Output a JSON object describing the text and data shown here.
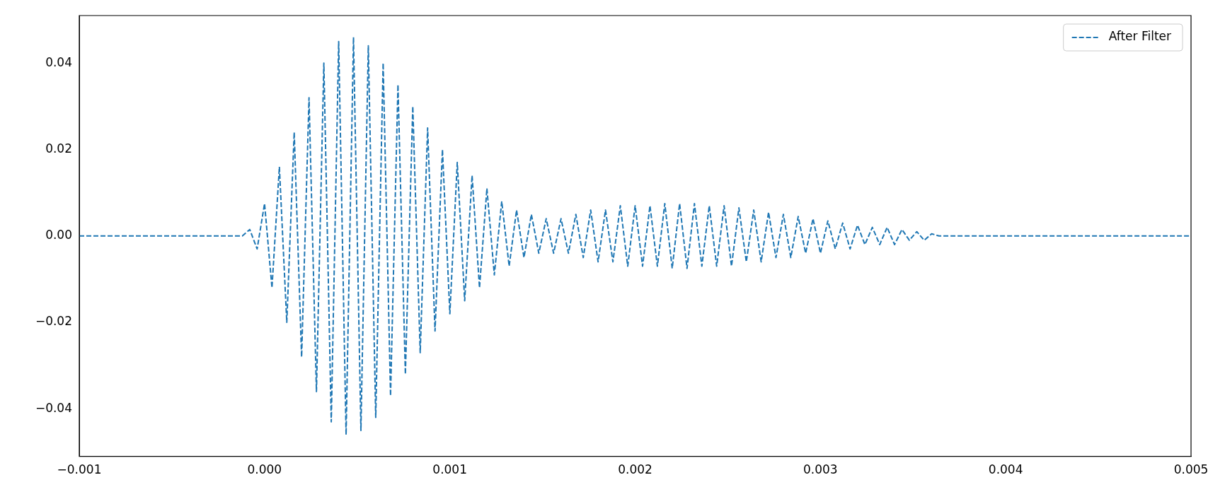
{
  "chart_data": {
    "type": "line",
    "legend": "top right",
    "grid": false,
    "marker": "none",
    "line_style": "dashed",
    "xlim": [
      -0.001,
      0.005
    ],
    "xticks": [
      {
        "value": -0.001,
        "label": "−0.001"
      },
      {
        "value": 0,
        "label": "0.000"
      },
      {
        "value": 0.001,
        "label": "0.001"
      },
      {
        "value": 0.002,
        "label": "0.002"
      },
      {
        "value": 0.003,
        "label": "0.003"
      },
      {
        "value": 0.004,
        "label": "0.004"
      },
      {
        "value": 0.005,
        "label": "0.005"
      }
    ],
    "ylim": [
      -0.051,
      0.051
    ],
    "yticks": [
      {
        "value": -0.04,
        "label": "−0.04"
      },
      {
        "value": -0.02,
        "label": "−0.02"
      },
      {
        "value": 0,
        "label": "0.00"
      },
      {
        "value": 0.02,
        "label": "0.02"
      },
      {
        "value": 0.04,
        "label": "0.04"
      }
    ],
    "x": [
      -0.001,
      -0.00012,
      -8e-05,
      -4e-05,
      0,
      4e-05,
      8e-05,
      0.00012,
      0.00016,
      0.0002,
      0.00024,
      0.00028,
      0.00032,
      0.00036,
      0.0004,
      0.00044,
      0.00048,
      0.00052,
      0.00056,
      0.0006,
      0.00064,
      0.00068,
      0.00072,
      0.00076,
      0.0008,
      0.00084,
      0.00088,
      0.00092,
      0.00096,
      0.001,
      0.00104,
      0.00108,
      0.00112,
      0.00116,
      0.0012,
      0.00124,
      0.00128,
      0.00132,
      0.00136,
      0.0014,
      0.00144,
      0.00148,
      0.00152,
      0.00156,
      0.0016,
      0.00164,
      0.00168,
      0.00172,
      0.00176,
      0.0018,
      0.00184,
      0.00188,
      0.00192,
      0.00196,
      0.002,
      0.00204,
      0.00208,
      0.00212,
      0.00216,
      0.0022,
      0.00224,
      0.00228,
      0.00232,
      0.00236,
      0.0024,
      0.00244,
      0.00248,
      0.00252,
      0.00256,
      0.0026,
      0.00264,
      0.00268,
      0.00272,
      0.00276,
      0.0028,
      0.00284,
      0.00288,
      0.00292,
      0.00296,
      0.003,
      0.00304,
      0.00308,
      0.00312,
      0.00316,
      0.0032,
      0.00324,
      0.00328,
      0.00332,
      0.00336,
      0.0034,
      0.00344,
      0.00348,
      0.00352,
      0.00356,
      0.0036,
      0.00364,
      0.005
    ],
    "series": [
      {
        "name": "After Filter",
        "color": "#1f77b4",
        "values": [
          0,
          0,
          0.0015,
          -0.003,
          0.0075,
          -0.012,
          0.016,
          -0.02,
          0.024,
          -0.028,
          0.032,
          -0.036,
          0.04,
          -0.043,
          0.045,
          -0.046,
          0.046,
          -0.045,
          0.044,
          -0.042,
          0.04,
          -0.037,
          0.035,
          -0.032,
          0.03,
          -0.027,
          0.025,
          -0.022,
          0.02,
          -0.018,
          0.017,
          -0.015,
          0.014,
          -0.012,
          0.011,
          -0.009,
          0.008,
          -0.007,
          0.006,
          -0.005,
          0.005,
          -0.004,
          0.004,
          -0.004,
          0.004,
          -0.004,
          0.005,
          -0.005,
          0.006,
          -0.006,
          0.006,
          -0.006,
          0.007,
          -0.007,
          0.007,
          -0.007,
          0.007,
          -0.007,
          0.0075,
          -0.0075,
          0.0075,
          -0.0075,
          0.0075,
          -0.007,
          0.007,
          -0.007,
          0.007,
          -0.007,
          0.0065,
          -0.006,
          0.006,
          -0.006,
          0.0055,
          -0.005,
          0.005,
          -0.005,
          0.0045,
          -0.004,
          0.004,
          -0.004,
          0.0035,
          -0.003,
          0.003,
          -0.003,
          0.0025,
          -0.002,
          0.002,
          -0.002,
          0.002,
          -0.002,
          0.0015,
          -0.001,
          0.001,
          -0.001,
          0.0005,
          0,
          0
        ]
      }
    ]
  }
}
